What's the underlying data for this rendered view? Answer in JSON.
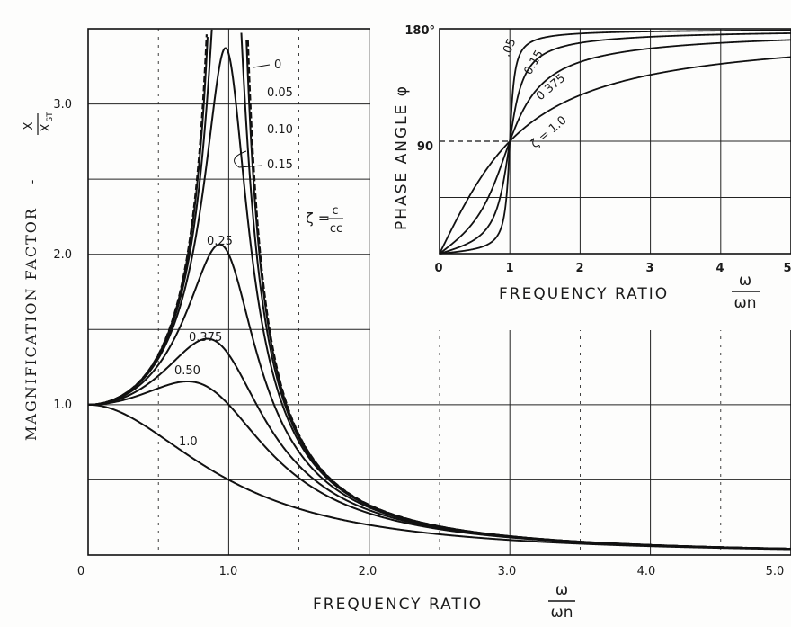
{
  "chart_data": [
    {
      "type": "line",
      "ylabel": "MAGNIFICATION FACTOR",
      "ylabel_ratio_num": "X",
      "ylabel_ratio_den": "X",
      "ylabel_ratio_sub": "ST",
      "xlabel": "FREQUENCY RATIO",
      "xlabel_num": "ω",
      "xlabel_den": "ωn",
      "x_ticks": [
        "0",
        "1.0",
        "2.0",
        "3.0",
        "4.0",
        "5.0"
      ],
      "y_ticks": [
        "1.0",
        "2.0",
        "3.0"
      ],
      "xlim": [
        0,
        5
      ],
      "ylim": [
        0,
        3.5
      ],
      "damping_label": "ζ =",
      "damping_num": "c",
      "damping_den": "cc",
      "series": [
        {
          "name": "0",
          "zeta": 0
        },
        {
          "name": "0.05",
          "zeta": 0.05
        },
        {
          "name": "0.10",
          "zeta": 0.1
        },
        {
          "name": "0.15",
          "zeta": 0.15
        },
        {
          "name": "0.25",
          "zeta": 0.25
        },
        {
          "name": "0.375",
          "zeta": 0.375
        },
        {
          "name": "0.50",
          "zeta": 0.5
        },
        {
          "name": "1.0",
          "zeta": 1.0
        }
      ]
    },
    {
      "type": "line",
      "ylabel": "PHASE ANGLE φ",
      "xlabel": "FREQUENCY RATIO",
      "xlabel_num": "ω",
      "xlabel_den": "ωn",
      "x_ticks": [
        "0",
        "1",
        "2",
        "3",
        "4",
        "5"
      ],
      "y_ticks": [
        "180°",
        "90"
      ],
      "xlim": [
        0,
        5
      ],
      "ylim": [
        0,
        180
      ],
      "series": [
        {
          "name": ".05",
          "zeta": 0.05
        },
        {
          "name": "0.15",
          "zeta": 0.15
        },
        {
          "name": "0.375",
          "zeta": 0.375
        },
        {
          "name": "ζ = 1.0",
          "zeta": 1.0
        }
      ]
    }
  ]
}
